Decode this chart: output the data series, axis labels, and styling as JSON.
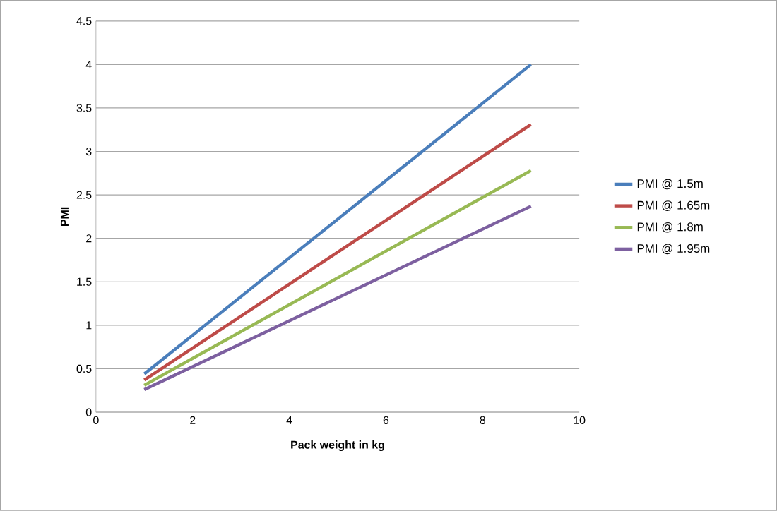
{
  "chart_data": {
    "type": "line",
    "xlabel": "Pack weight in kg",
    "ylabel": "PMI",
    "x": [
      1,
      9
    ],
    "series": [
      {
        "name": "PMI @ 1.5m",
        "color": "#4a7ebb",
        "values": [
          0.44,
          4.0
        ]
      },
      {
        "name": "PMI @ 1.65m",
        "color": "#be4b48",
        "values": [
          0.37,
          3.31
        ]
      },
      {
        "name": "PMI @ 1.8m",
        "color": "#98b954",
        "values": [
          0.31,
          2.78
        ]
      },
      {
        "name": "PMI @ 1.95m",
        "color": "#7d60a0",
        "values": [
          0.26,
          2.37
        ]
      }
    ],
    "xlim": [
      0,
      10
    ],
    "xticks": [
      0,
      2,
      4,
      6,
      8,
      10
    ],
    "ylim": [
      0,
      4.5
    ],
    "yticks": [
      0,
      0.5,
      1,
      1.5,
      2,
      2.5,
      3,
      3.5,
      4,
      4.5
    ],
    "grid": "y",
    "legend": "right",
    "marker": "none",
    "line_style": "solid"
  }
}
